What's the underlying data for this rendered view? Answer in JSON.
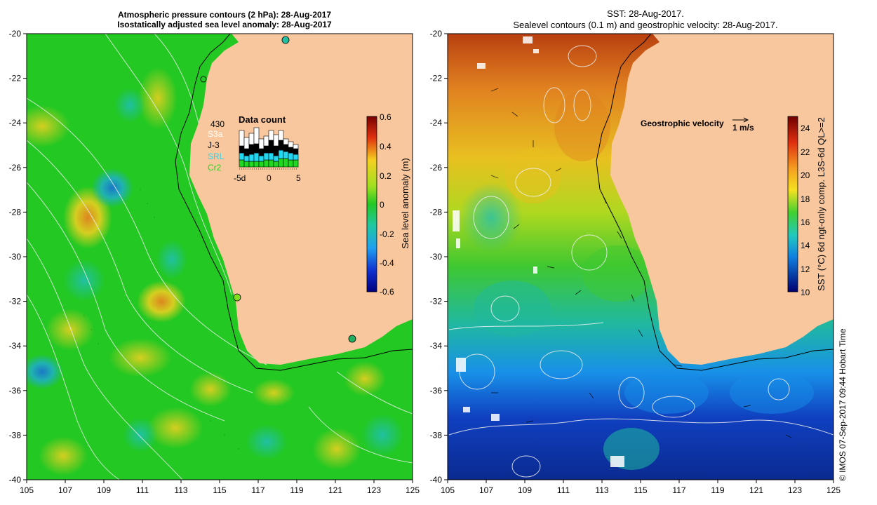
{
  "left_panel": {
    "title_line1": "Atmospheric pressure contours (2 hPa): 28-Aug-2017",
    "title_line2": "Isostatically adjusted sea level anomaly: 28-Aug-2017",
    "colorbar": {
      "label": "Sea level anomaly (m)",
      "ticks": [
        "0.6",
        "0.4",
        "0.2",
        "0",
        "-0.2",
        "-0.4",
        "-0.6"
      ],
      "range": [
        -0.6,
        0.6
      ]
    },
    "data_count": {
      "title": "Data count",
      "total": "430",
      "legend": [
        {
          "name": "S3a",
          "color": "#ffffff"
        },
        {
          "name": "J-3",
          "color": "#000000"
        },
        {
          "name": "SRL",
          "color": "#22d8f0"
        },
        {
          "name": "Cr2",
          "color": "#1fd81f"
        }
      ],
      "x_ticks": [
        "-5d",
        "0",
        "5"
      ]
    }
  },
  "right_panel": {
    "title_line1": "SST: 28-Aug-2017.",
    "title_line2": "Sealevel contours (0.1 m) and geostrophic velocity: 28-Aug-2017.",
    "velocity_label": "Geostrophic velocity",
    "velocity_scale": "1 m/s",
    "colorbar": {
      "label": "SST (°C) 6d ngt-only comp. L3S-6d QL>=2",
      "ticks": [
        "24",
        "22",
        "20",
        "18",
        "16",
        "14",
        "12",
        "10"
      ],
      "range": [
        10,
        25
      ]
    }
  },
  "axes": {
    "x_ticks": [
      "105",
      "107",
      "109",
      "111",
      "113",
      "115",
      "117",
      "119",
      "121",
      "123",
      "125"
    ],
    "y_ticks": [
      "-20",
      "-22",
      "-24",
      "-26",
      "-28",
      "-30",
      "-32",
      "-34",
      "-36",
      "-38",
      "-40"
    ],
    "lon_range": [
      105,
      125
    ],
    "lat_range": [
      -40,
      -20
    ]
  },
  "colors": {
    "land": "#f9c79d",
    "sla_green": "#23c823",
    "sst_warm": "#e05a10",
    "sst_cold": "#1030a0"
  },
  "credit": "© IMOS 07-Sep-2017 09:44 Hobart Time"
}
